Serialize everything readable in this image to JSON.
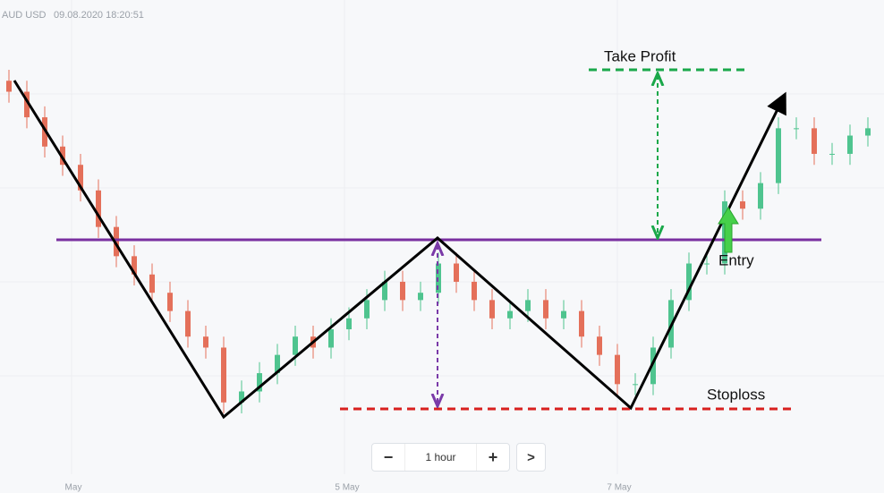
{
  "header": {
    "symbol": "AUD USD",
    "timestamp": "09.08.2020 18:20:51"
  },
  "x_labels": [
    "May",
    "5 May",
    "7 May"
  ],
  "annotations": {
    "take_profit": "Take Profit",
    "entry": "Entry",
    "stoploss": "Stoploss"
  },
  "controls": {
    "minus": "−",
    "interval": "1 hour",
    "plus": "+",
    "next": ">"
  },
  "chart_data": {
    "type": "candlestick",
    "up_color": "#4fc48f",
    "down_color": "#e4705a",
    "open": [
      95,
      92,
      85,
      77,
      72,
      65,
      55,
      47,
      42,
      37,
      32,
      25,
      22,
      7,
      10,
      15,
      20,
      25,
      22,
      27,
      30,
      35,
      40,
      35,
      37,
      45,
      40,
      35,
      30,
      32,
      35,
      30,
      32,
      25,
      20,
      12,
      12,
      22,
      35,
      45,
      45,
      62,
      60,
      67,
      82,
      82,
      75,
      75,
      80
    ],
    "high": [
      98,
      95,
      88,
      80,
      75,
      68,
      58,
      50,
      45,
      40,
      35,
      28,
      25,
      13,
      18,
      23,
      28,
      28,
      30,
      33,
      38,
      43,
      43,
      40,
      48,
      48,
      43,
      38,
      35,
      38,
      38,
      35,
      35,
      28,
      23,
      15,
      25,
      38,
      48,
      48,
      65,
      65,
      70,
      85,
      85,
      85,
      78,
      83,
      85
    ],
    "low": [
      89,
      82,
      74,
      69,
      62,
      52,
      44,
      39,
      34,
      29,
      22,
      19,
      4,
      4,
      7,
      12,
      17,
      19,
      19,
      24,
      27,
      32,
      32,
      32,
      34,
      37,
      32,
      27,
      27,
      29,
      27,
      27,
      22,
      17,
      9,
      9,
      9,
      19,
      32,
      42,
      42,
      57,
      57,
      64,
      79,
      72,
      72,
      72,
      77
    ],
    "close": [
      92,
      85,
      77,
      72,
      65,
      55,
      47,
      42,
      37,
      32,
      25,
      22,
      7,
      10,
      15,
      20,
      25,
      22,
      27,
      30,
      35,
      40,
      35,
      37,
      45,
      40,
      35,
      30,
      32,
      35,
      30,
      32,
      25,
      20,
      12,
      12,
      22,
      35,
      45,
      45,
      62,
      60,
      67,
      82,
      82,
      75,
      75,
      80,
      82
    ]
  }
}
